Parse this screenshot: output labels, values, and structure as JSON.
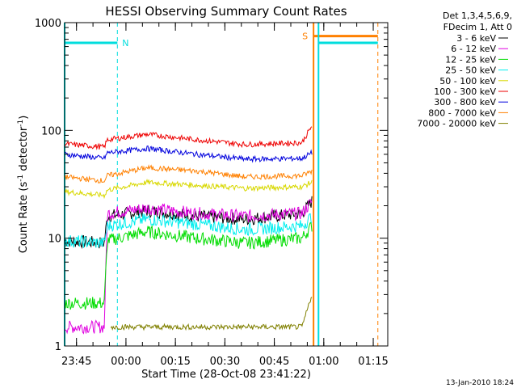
{
  "chart_data": {
    "type": "line",
    "title": "HESSI Observing Summary Count Rates",
    "xlabel": "Start Time (28-Oct-08 23:41:22)",
    "ylabel_main": "Count Rate (s",
    "ylabel_sup1": "-1",
    "ylabel_mid": " detector",
    "ylabel_sup2": "-1",
    "ylabel_end": ")",
    "yscale": "log",
    "ylim": [
      1,
      1000
    ],
    "xlim_minutes_after_start": [
      0,
      98
    ],
    "x_ticks": [
      {
        "label": "23:45",
        "minutes": 3.6
      },
      {
        "label": "00:00",
        "minutes": 18.6
      },
      {
        "label": "00:15",
        "minutes": 33.6
      },
      {
        "label": "00:30",
        "minutes": 48.6
      },
      {
        "label": "00:45",
        "minutes": 63.6
      },
      {
        "label": "01:00",
        "minutes": 78.6
      },
      {
        "label": "01:15",
        "minutes": 93.6
      }
    ],
    "y_ticks": [
      {
        "label": "1",
        "value": 1
      },
      {
        "label": "10",
        "value": 10
      },
      {
        "label": "100",
        "value": 100
      },
      {
        "label": "1000",
        "value": 1000
      }
    ],
    "legend_header": [
      "Det 1,3,4,5,6,9,",
      "FDecim 1, Att 0"
    ],
    "legend_position": "right",
    "series": [
      {
        "name": "3 - 6 keV",
        "color": "#000000",
        "points": [
          [
            0,
            9.5
          ],
          [
            12,
            9
          ],
          [
            13,
            16
          ],
          [
            25,
            18
          ],
          [
            40,
            16
          ],
          [
            55,
            15
          ],
          [
            72,
            17
          ],
          [
            75,
            22
          ]
        ]
      },
      {
        "name": "6 - 12 keV",
        "color": "#e000e0",
        "points": [
          [
            0,
            1.5
          ],
          [
            12,
            1.5
          ],
          [
            13,
            17
          ],
          [
            25,
            19
          ],
          [
            40,
            17
          ],
          [
            55,
            16
          ],
          [
            72,
            17
          ],
          [
            75,
            22
          ]
        ]
      },
      {
        "name": "12 - 25 keV",
        "color": "#00dd00",
        "points": [
          [
            0,
            2.5
          ],
          [
            12,
            2.5
          ],
          [
            13,
            9.5
          ],
          [
            25,
            11.5
          ],
          [
            40,
            10
          ],
          [
            55,
            9
          ],
          [
            72,
            10
          ],
          [
            75,
            13
          ]
        ]
      },
      {
        "name": "25 - 50 keV",
        "color": "#00eeee",
        "points": [
          [
            0,
            9.5
          ],
          [
            12,
            9
          ],
          [
            13,
            13
          ],
          [
            25,
            15
          ],
          [
            40,
            13.5
          ],
          [
            55,
            12
          ],
          [
            72,
            13
          ],
          [
            75,
            16
          ]
        ]
      },
      {
        "name": "50 - 100 keV",
        "color": "#d8d800",
        "points": [
          [
            0,
            27
          ],
          [
            12,
            25
          ],
          [
            13,
            28
          ],
          [
            25,
            33
          ],
          [
            40,
            31
          ],
          [
            55,
            29
          ],
          [
            72,
            30
          ],
          [
            75,
            33
          ]
        ]
      },
      {
        "name": "100 - 300 keV",
        "color": "#ee0000",
        "points": [
          [
            0,
            75
          ],
          [
            12,
            70
          ],
          [
            13,
            82
          ],
          [
            25,
            92
          ],
          [
            40,
            82
          ],
          [
            55,
            74
          ],
          [
            72,
            77
          ],
          [
            75,
            110
          ]
        ]
      },
      {
        "name": "300 - 800 keV",
        "color": "#0000dd",
        "points": [
          [
            0,
            60
          ],
          [
            12,
            55
          ],
          [
            13,
            62
          ],
          [
            25,
            68
          ],
          [
            40,
            60
          ],
          [
            55,
            54
          ],
          [
            72,
            55
          ],
          [
            75,
            62
          ]
        ]
      },
      {
        "name": "800 - 7000 keV",
        "color": "#ff8000",
        "points": [
          [
            0,
            37
          ],
          [
            12,
            34
          ],
          [
            13,
            38
          ],
          [
            25,
            45
          ],
          [
            40,
            42
          ],
          [
            55,
            37
          ],
          [
            72,
            38
          ],
          [
            75,
            42
          ]
        ]
      },
      {
        "name": "7000 - 20000 keV",
        "color": "#808000",
        "points": [
          [
            14,
            1.5
          ],
          [
            30,
            1.5
          ],
          [
            55,
            1.5
          ],
          [
            72,
            1.5
          ],
          [
            75,
            3
          ]
        ]
      }
    ],
    "annotations": [
      {
        "label": "N",
        "color": "#00dddd",
        "x_minutes": 16,
        "y": 650
      },
      {
        "label": "S",
        "color": "#ff8000",
        "x_minutes": 75,
        "y": 750
      }
    ],
    "footer_timestamp": "13-Jan-2010 18:24"
  }
}
